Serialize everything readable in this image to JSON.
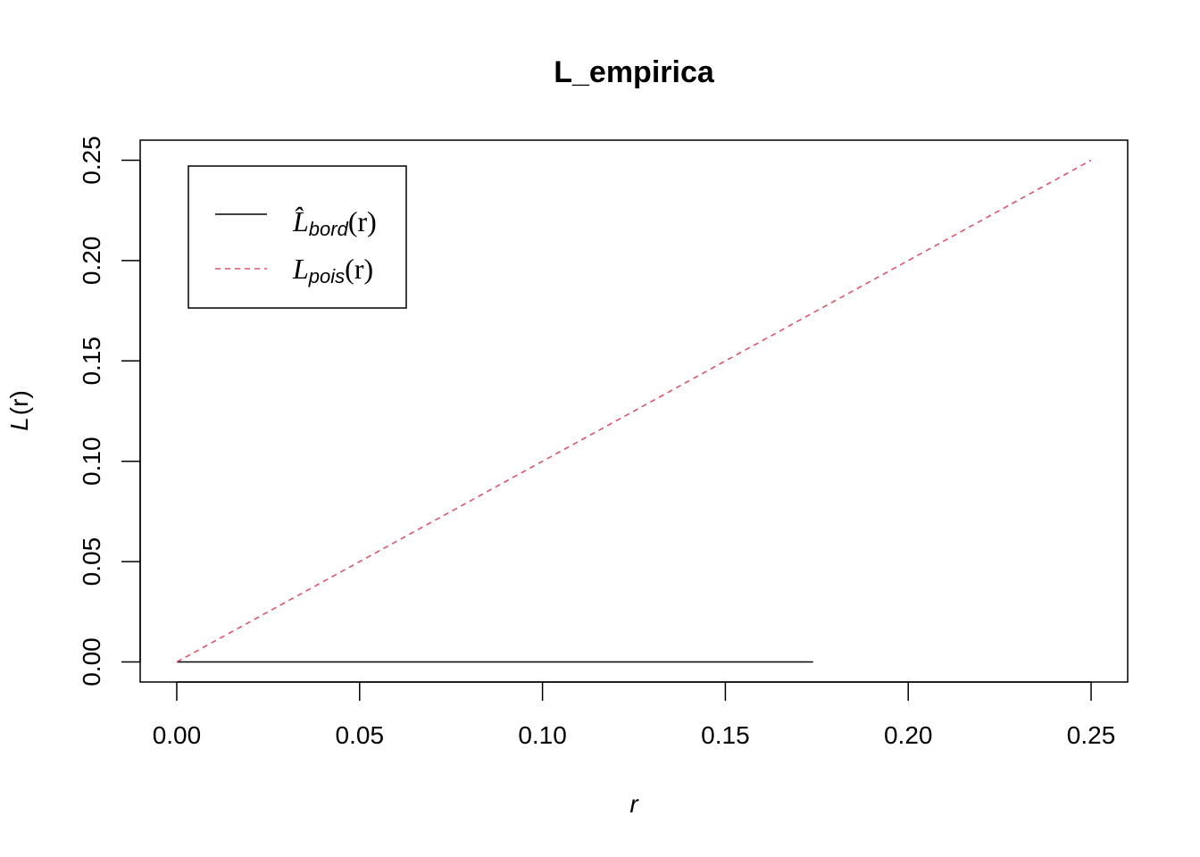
{
  "chart_data": {
    "type": "line",
    "title": "L_empirica",
    "xlabel": "r",
    "ylabel_main": "L",
    "ylabel_arg": "(r)",
    "xlim": [
      -0.01,
      0.26
    ],
    "ylim": [
      -0.01,
      0.26
    ],
    "x_ticks": [
      0.0,
      0.05,
      0.1,
      0.15,
      0.2,
      0.25
    ],
    "x_tick_labels": [
      "0.00",
      "0.05",
      "0.10",
      "0.15",
      "0.20",
      "0.25"
    ],
    "y_ticks": [
      0.0,
      0.05,
      0.1,
      0.15,
      0.2,
      0.25
    ],
    "y_tick_labels": [
      "0.00",
      "0.05",
      "0.10",
      "0.15",
      "0.20",
      "0.25"
    ],
    "grid": false,
    "legend_position": "top-left",
    "series": [
      {
        "legend_main": "L̂",
        "legend_sub": "bord",
        "legend_arg": "(r)",
        "color": "#000000",
        "dash": "solid",
        "x": [
          0.0,
          0.174
        ],
        "y": [
          0.0,
          0.0
        ]
      },
      {
        "legend_main": "L",
        "legend_sub": "pois",
        "legend_arg": "(r)",
        "color": "#DF536B",
        "dash": "dashed",
        "x": [
          0.0,
          0.25
        ],
        "y": [
          0.0,
          0.25
        ]
      }
    ]
  }
}
